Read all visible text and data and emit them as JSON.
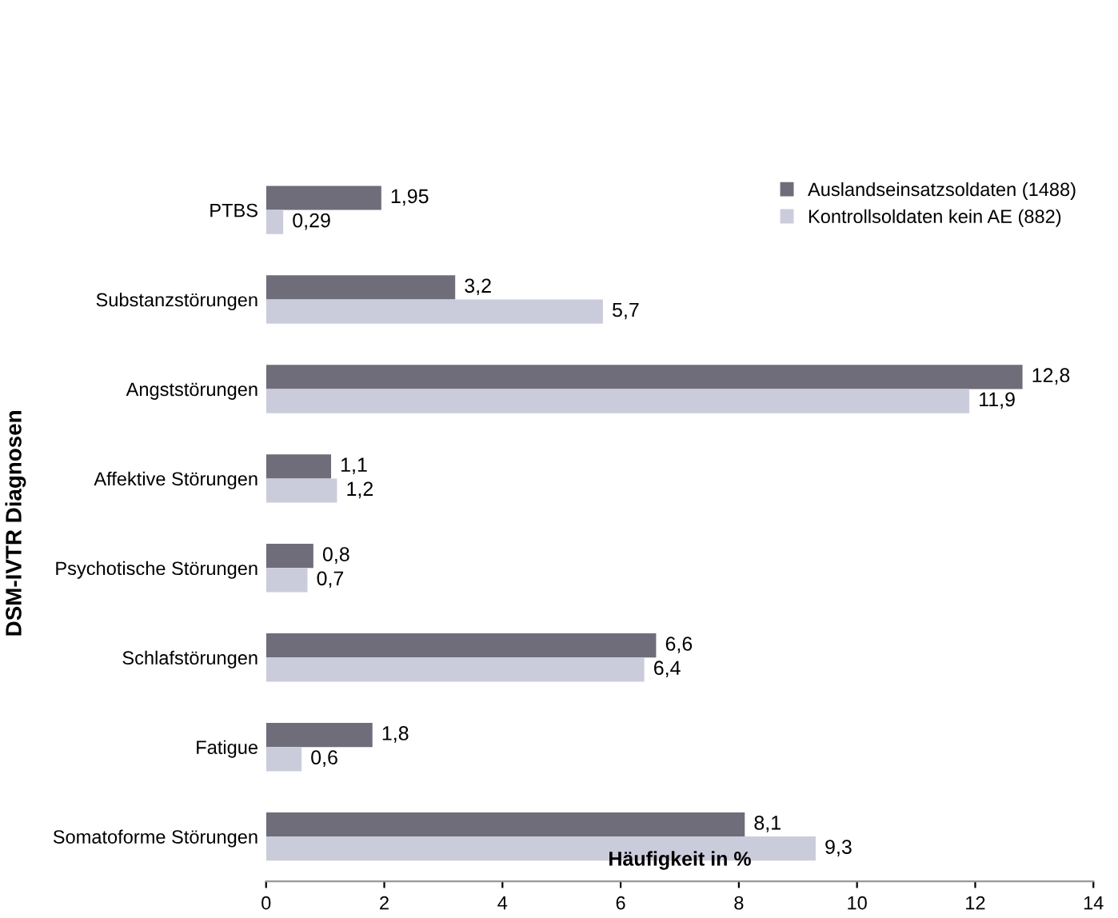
{
  "chart_data": {
    "type": "bar",
    "orientation": "horizontal",
    "xlabel": "Häufigkeit in %",
    "ylabel": "DSM-IVTR Diagnosen",
    "categories": [
      "PTBS",
      "Substanzstörungen",
      "Angststörungen",
      "Affektive Störungen",
      "Psychotische Störungen",
      "Schlafstörungen",
      "Fatigue",
      "Somatoforme Störungen"
    ],
    "series": [
      {
        "name": "Auslandseinsatzsoldaten (1488)",
        "color": "#6e6d79",
        "values": [
          1.95,
          3.2,
          12.8,
          1.1,
          0.8,
          6.6,
          1.8,
          8.1
        ],
        "value_labels": [
          "1,95",
          "3,2",
          "12,8",
          "1,1",
          "0,8",
          "6,6",
          "1,8",
          "8,1"
        ]
      },
      {
        "name": "Kontrollsoldaten kein AE (882)",
        "color": "#cbccdb",
        "values": [
          0.29,
          5.7,
          11.9,
          1.2,
          0.7,
          6.4,
          0.6,
          9.3
        ],
        "value_labels": [
          "0,29",
          "5,7",
          "11,9",
          "1,2",
          "0,7",
          "6,4",
          "0,6",
          "9,3"
        ]
      }
    ],
    "xlim": [
      0,
      14
    ],
    "xticks": [
      0,
      2,
      4,
      6,
      8,
      10,
      12,
      14
    ],
    "grid": false,
    "legend": "top right"
  }
}
